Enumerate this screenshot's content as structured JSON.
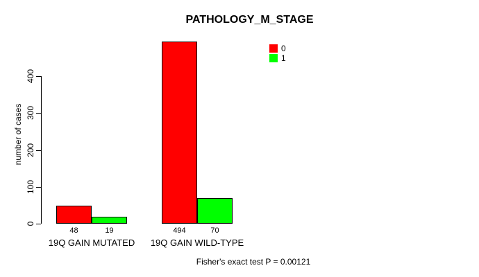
{
  "chart_data": {
    "type": "bar",
    "title": "PATHOLOGY_M_STAGE",
    "categories": [
      "19Q GAIN MUTATED",
      "19Q GAIN WILD-TYPE"
    ],
    "series": [
      {
        "name": "0",
        "color": "#FF0000",
        "values": [
          48,
          494
        ]
      },
      {
        "name": "1",
        "color": "#00FF00",
        "values": [
          19,
          70
        ]
      }
    ],
    "ylabel": "number of cases",
    "xlabel": "",
    "yticks": [
      0,
      100,
      200,
      300,
      400
    ],
    "ylim": [
      0,
      400
    ],
    "grid": false,
    "legend_position": "top-right",
    "annotation": "Fisher's exact test P = 0.00121"
  },
  "colors": {
    "background": "#FFFFFF",
    "axis": "#000000",
    "bar_border": "#000000",
    "series_0": "#FF0000",
    "series_1": "#00FF00"
  }
}
